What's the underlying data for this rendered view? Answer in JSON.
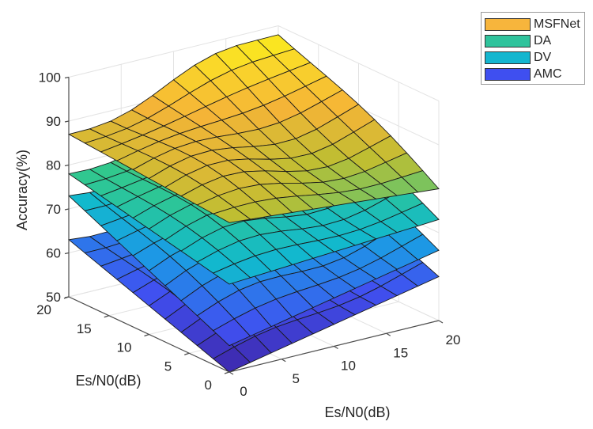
{
  "chart_data": {
    "type": "surface3d",
    "title": "",
    "xlabel": "Es/N0(dB)",
    "ylabel": "Es/N0(dB)",
    "zlabel": "Accuracy(%)",
    "x_ticks": [
      0,
      5,
      10,
      15,
      20
    ],
    "y_ticks": [
      0,
      5,
      10,
      15,
      20
    ],
    "z_ticks": [
      50,
      60,
      70,
      80,
      90,
      100
    ],
    "xlim": [
      0,
      20
    ],
    "ylim": [
      0,
      20
    ],
    "zlim": [
      50,
      100
    ],
    "grid": true,
    "legend_position": "top-right",
    "grid_axis": [
      0,
      2,
      4,
      6,
      8,
      10,
      12,
      14,
      16,
      18,
      20
    ],
    "series": [
      {
        "name": "MSFNet",
        "color": "#f5b731",
        "base": 84,
        "peak": 99,
        "left_edge": 87,
        "right_edge": 80
      },
      {
        "name": "DA",
        "color": "#2ec4a0",
        "base": 70,
        "peak": 88,
        "left_edge": 78,
        "right_edge": 73
      },
      {
        "name": "DV",
        "color": "#13b8d4",
        "base": 56,
        "peak": 80,
        "left_edge": 73,
        "right_edge": 66
      },
      {
        "name": "AMC",
        "color": "#3b4ef0",
        "base": 50,
        "peak": 70,
        "left_edge": 63,
        "right_edge": 60
      }
    ]
  },
  "legend": {
    "items": [
      {
        "label": "MSFNet",
        "color": "#f7b53c"
      },
      {
        "label": "DA",
        "color": "#2fc39c"
      },
      {
        "label": "DV",
        "color": "#14b6cf"
      },
      {
        "label": "AMC",
        "color": "#3f4ff0"
      }
    ]
  },
  "axes": {
    "z_label": "Accuracy(%)",
    "x_label": "Es/N0(dB)",
    "y_label": "Es/N0(dB)",
    "z_tick_labels": [
      "50",
      "60",
      "70",
      "80",
      "90",
      "100"
    ],
    "x_tick_labels": [
      "0",
      "5",
      "10",
      "15",
      "20"
    ],
    "y_tick_labels": [
      "0",
      "5",
      "10",
      "15",
      "20"
    ]
  }
}
